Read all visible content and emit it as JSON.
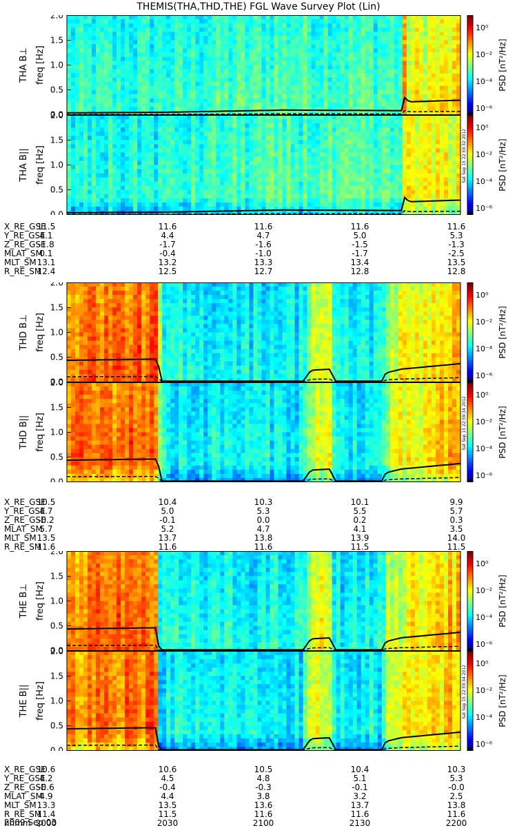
{
  "title": "THEMIS(THA,THD,THE) FGL Wave Survey Plot (Lin)",
  "colorbar": {
    "label": "PSD [nT²/Hz]",
    "ticks": [
      "10⁰",
      "10⁻²",
      "10⁻⁴",
      "10⁻⁶"
    ]
  },
  "chart_data": [
    {
      "type": "heatmap",
      "probe": "THA",
      "panels": [
        {
          "ylabel": "THA B⊥",
          "yunit": "freq [Hz]",
          "ylim": [
            0,
            2.0
          ],
          "yticks": [
            "2.0",
            "1.5",
            "1.0",
            "0.5",
            "0.0"
          ]
        },
        {
          "ylabel": "THA B||",
          "yunit": "freq [Hz]",
          "ylim": [
            0,
            2.0
          ],
          "yticks": [
            "2.0",
            "1.5",
            "1.0",
            "0.5",
            "0.0"
          ]
        }
      ],
      "timestamp": "Sat Sep 15 22:59:32 2012",
      "profile": [
        [
          0,
          0.42
        ],
        [
          0.25,
          0.43
        ],
        [
          0.55,
          0.47
        ],
        [
          0.85,
          0.46
        ],
        [
          0.855,
          0.72
        ],
        [
          0.87,
          0.62
        ],
        [
          1,
          0.65
        ]
      ],
      "baseline": 0.35,
      "ephemeris": [
        {
          "label": "X_RE_GSE",
          "values": [
            "11.5",
            "11.6",
            "11.6",
            "11.6",
            "11.6"
          ]
        },
        {
          "label": "Y_RE_GSE",
          "values": [
            "4.1",
            "4.4",
            "4.7",
            "5.0",
            "5.3"
          ]
        },
        {
          "label": "Z_RE_GSE",
          "values": [
            "-1.8",
            "-1.7",
            "-1.6",
            "-1.5",
            "-1.3"
          ]
        },
        {
          "label": "MLAT_SM",
          "values": [
            "0.1",
            "-0.4",
            "-1.0",
            "-1.7",
            "-2.5"
          ]
        },
        {
          "label": "MLT_SM",
          "values": [
            "13.1",
            "13.2",
            "13.3",
            "13.4",
            "13.5"
          ]
        },
        {
          "label": "R_RE_SM",
          "values": [
            "12.4",
            "12.5",
            "12.7",
            "12.8",
            "12.8"
          ]
        }
      ]
    },
    {
      "type": "heatmap",
      "probe": "THD",
      "panels": [
        {
          "ylabel": "THD B⊥",
          "yunit": "freq [Hz]",
          "ylim": [
            0,
            2.0
          ],
          "yticks": [
            "2.0",
            "1.5",
            "1.0",
            "0.5",
            "0.0"
          ]
        },
        {
          "ylabel": "THD B||",
          "yunit": "freq [Hz]",
          "ylim": [
            0,
            2.0
          ],
          "yticks": [
            "2.0",
            "1.5",
            "1.0",
            "0.5",
            "0.0"
          ]
        }
      ],
      "timestamp": "Sat Sep 15 22:59:34 2012",
      "profile": [
        [
          0,
          0.78
        ],
        [
          0.2,
          0.8
        ],
        [
          0.23,
          0.8
        ],
        [
          0.24,
          0.4
        ],
        [
          0.6,
          0.4
        ],
        [
          0.62,
          0.6
        ],
        [
          0.67,
          0.62
        ],
        [
          0.68,
          0.4
        ],
        [
          0.8,
          0.4
        ],
        [
          0.81,
          0.55
        ],
        [
          0.85,
          0.62
        ],
        [
          1,
          0.72
        ]
      ],
      "baseline": 0.35,
      "ephemeris": [
        {
          "label": "X_RE_GSE",
          "values": [
            "10.5",
            "10.4",
            "10.3",
            "10.1",
            "9.9"
          ]
        },
        {
          "label": "Y_RE_GSE",
          "values": [
            "4.7",
            "5.0",
            "5.3",
            "5.5",
            "5.7"
          ]
        },
        {
          "label": "Z_RE_GSE",
          "values": [
            "-0.2",
            "-0.1",
            "0.0",
            "0.2",
            "0.3"
          ]
        },
        {
          "label": "MLAT_SM",
          "values": [
            "5.7",
            "5.2",
            "4.7",
            "4.1",
            "3.5"
          ]
        },
        {
          "label": "MLT_SM",
          "values": [
            "13.5",
            "13.7",
            "13.8",
            "13.9",
            "14.0"
          ]
        },
        {
          "label": "R_RE_SM",
          "values": [
            "11.6",
            "11.6",
            "11.6",
            "11.5",
            "11.5"
          ]
        }
      ]
    },
    {
      "type": "heatmap",
      "probe": "THE",
      "panels": [
        {
          "ylabel": "THE B⊥",
          "yunit": "freq [Hz]",
          "ylim": [
            0,
            2.0
          ],
          "yticks": [
            "2.0",
            "1.5",
            "1.0",
            "0.5",
            "0.0"
          ]
        },
        {
          "ylabel": "THE B||",
          "yunit": "freq [Hz]",
          "ylim": [
            0,
            2.0
          ],
          "yticks": [
            "2.0",
            "1.5",
            "1.0",
            "0.5",
            "0.0"
          ]
        }
      ],
      "timestamp": "Sat Sep 15 22:59:34 2012",
      "profile": [
        [
          0,
          0.78
        ],
        [
          0.2,
          0.8
        ],
        [
          0.225,
          0.8
        ],
        [
          0.235,
          0.4
        ],
        [
          0.6,
          0.4
        ],
        [
          0.62,
          0.6
        ],
        [
          0.67,
          0.62
        ],
        [
          0.68,
          0.4
        ],
        [
          0.8,
          0.4
        ],
        [
          0.81,
          0.55
        ],
        [
          0.85,
          0.62
        ],
        [
          1,
          0.72
        ]
      ],
      "baseline": 0.35,
      "ephemeris": [
        {
          "label": "X_RE_GSE",
          "values": [
            "10.6",
            "10.6",
            "10.5",
            "10.4",
            "10.3"
          ]
        },
        {
          "label": "Y_RE_GSE",
          "values": [
            "4.2",
            "4.5",
            "4.8",
            "5.1",
            "5.3"
          ]
        },
        {
          "label": "Z_RE_GSE",
          "values": [
            "-0.6",
            "-0.4",
            "-0.3",
            "-0.1",
            "-0.0"
          ]
        },
        {
          "label": "MLAT_SM",
          "values": [
            "4.9",
            "4.4",
            "3.8",
            "3.2",
            "2.5"
          ]
        },
        {
          "label": "MLT_SM",
          "values": [
            "13.3",
            "13.5",
            "13.6",
            "13.7",
            "13.8"
          ]
        },
        {
          "label": "R_RE_SM",
          "values": [
            "11.4",
            "11.5",
            "11.6",
            "11.6",
            "11.6"
          ]
        },
        {
          "label": "hhmm",
          "values": [
            "2000",
            "2030",
            "2100",
            "2130",
            "2200"
          ]
        }
      ]
    }
  ],
  "date": "2009 Sep 03"
}
